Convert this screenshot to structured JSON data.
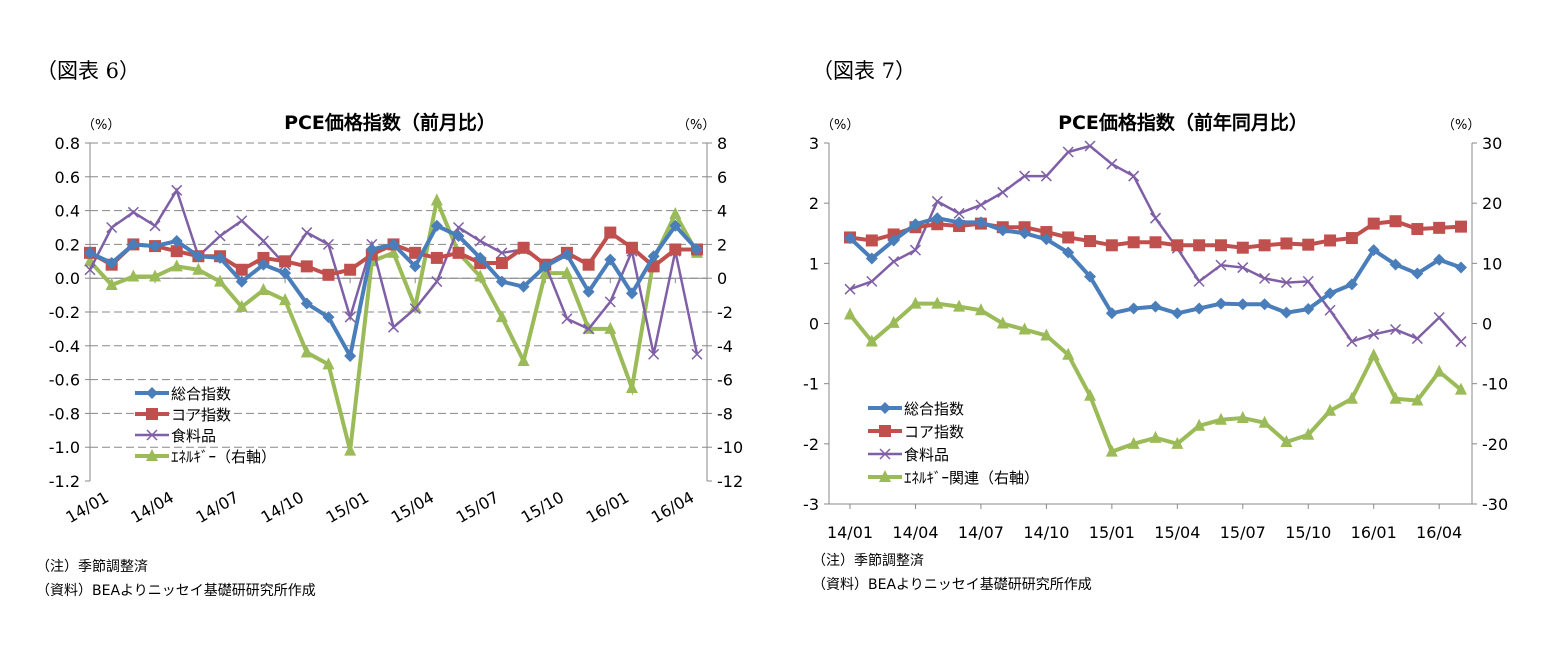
{
  "chart_data": [
    {
      "type": "line",
      "figure_label": "（図表 6）",
      "title": "PCE価格指数（前月比）",
      "left_unit": "（%）",
      "right_unit": "（%）",
      "ylim": [
        -1.2,
        0.8
      ],
      "ylim_right": [
        -12,
        8
      ],
      "yticks": [
        "0.8",
        "0.6",
        "0.4",
        "0.2",
        "0.0",
        "-0.2",
        "-0.4",
        "-0.6",
        "-0.8",
        "-1.0",
        "-1.2"
      ],
      "yticks_right": [
        "8",
        "6",
        "4",
        "2",
        "0",
        "-2",
        "-4",
        "-6",
        "-8",
        "-10",
        "-12"
      ],
      "xtick_labels": [
        "14/01",
        "14/04",
        "14/07",
        "14/10",
        "15/01",
        "15/04",
        "15/07",
        "15/10",
        "16/01",
        "16/04"
      ],
      "x": [
        "14/01",
        "14/02",
        "14/03",
        "14/04",
        "14/05",
        "14/06",
        "14/07",
        "14/08",
        "14/09",
        "14/10",
        "14/11",
        "14/12",
        "15/01",
        "15/02",
        "15/03",
        "15/04",
        "15/05",
        "15/06",
        "15/07",
        "15/08",
        "15/09",
        "15/10",
        "15/11",
        "15/12",
        "16/01",
        "16/02",
        "16/03",
        "16/04",
        "16/05"
      ],
      "grid": true,
      "legend_position": "bottom-left",
      "series": [
        {
          "name": "総合指数",
          "color": "#4a7ebb",
          "marker": "diamond",
          "axis": "left",
          "values": [
            0.15,
            0.09,
            0.2,
            0.19,
            0.22,
            0.13,
            0.12,
            -0.02,
            0.08,
            0.03,
            -0.15,
            -0.23,
            -0.46,
            0.17,
            0.2,
            0.07,
            0.31,
            0.25,
            0.12,
            -0.02,
            -0.05,
            0.07,
            0.14,
            -0.08,
            0.11,
            -0.09,
            0.13,
            0.31,
            0.17
          ]
        },
        {
          "name": "コア指数",
          "color": "#c0504d",
          "marker": "square",
          "axis": "left",
          "values": [
            0.15,
            0.08,
            0.2,
            0.19,
            0.16,
            0.13,
            0.13,
            0.05,
            0.12,
            0.1,
            0.07,
            0.02,
            0.05,
            0.14,
            0.2,
            0.15,
            0.12,
            0.15,
            0.09,
            0.09,
            0.18,
            0.08,
            0.15,
            0.08,
            0.27,
            0.18,
            0.07,
            0.17,
            0.17
          ]
        },
        {
          "name": "食料品",
          "color": "#7f5fa6",
          "marker": "x",
          "axis": "left",
          "values": [
            0.05,
            0.3,
            0.39,
            0.31,
            0.52,
            0.13,
            0.25,
            0.34,
            0.22,
            0.08,
            0.27,
            0.2,
            -0.23,
            0.2,
            -0.29,
            -0.18,
            -0.02,
            0.3,
            0.22,
            0.15,
            0.17,
            0.08,
            -0.24,
            -0.3,
            -0.14,
            0.16,
            -0.45,
            0.16,
            -0.45
          ]
        },
        {
          "name": "ｴﾈﾙｷﾞｰ（右軸）",
          "color": "#9bbb59",
          "marker": "triangle",
          "axis": "right",
          "values": [
            1.0,
            -0.4,
            0.1,
            0.1,
            0.7,
            0.5,
            -0.2,
            -1.7,
            -0.7,
            -1.3,
            -4.4,
            -5.1,
            -10.2,
            1.0,
            1.5,
            -1.7,
            4.6,
            1.5,
            0.1,
            -2.3,
            -4.9,
            0.3,
            0.3,
            -3.0,
            -3.0,
            -6.5,
            1.1,
            3.8,
            1.5
          ]
        }
      ],
      "notes": [
        "（注）季節調整済",
        "（資料）BEAよりニッセイ基礎研研究所作成"
      ]
    },
    {
      "type": "line",
      "figure_label": "（図表 7）",
      "title": "PCE価格指数（前年同月比）",
      "left_unit": "（%）",
      "right_unit": "（%）",
      "ylim": [
        -3,
        3
      ],
      "ylim_right": [
        -30,
        30
      ],
      "yticks": [
        "3",
        "2",
        "1",
        "0",
        "-1",
        "-2",
        "-3"
      ],
      "yticks_right": [
        "30",
        "20",
        "10",
        "0",
        "-10",
        "-20",
        "-30"
      ],
      "xtick_labels": [
        "14/01",
        "14/04",
        "14/07",
        "14/10",
        "15/01",
        "15/04",
        "15/07",
        "15/10",
        "16/01",
        "16/04"
      ],
      "x": [
        "14/01",
        "14/02",
        "14/03",
        "14/04",
        "14/05",
        "14/06",
        "14/07",
        "14/08",
        "14/09",
        "14/10",
        "14/11",
        "14/12",
        "15/01",
        "15/02",
        "15/03",
        "15/04",
        "15/05",
        "15/06",
        "15/07",
        "15/08",
        "15/09",
        "15/10",
        "15/11",
        "15/12",
        "16/01",
        "16/02",
        "16/03",
        "16/04",
        "16/05"
      ],
      "grid": false,
      "legend_position": "bottom-left",
      "series": [
        {
          "name": "総合指数",
          "color": "#4a7ebb",
          "marker": "diamond",
          "axis": "left",
          "values": [
            1.42,
            1.08,
            1.38,
            1.65,
            1.75,
            1.68,
            1.68,
            1.55,
            1.5,
            1.4,
            1.18,
            0.78,
            0.17,
            0.25,
            0.28,
            0.17,
            0.25,
            0.33,
            0.32,
            0.32,
            0.18,
            0.24,
            0.5,
            0.65,
            1.22,
            0.98,
            0.83,
            1.06,
            0.93
          ]
        },
        {
          "name": "コア指数",
          "color": "#c0504d",
          "marker": "square",
          "axis": "left",
          "values": [
            1.43,
            1.38,
            1.48,
            1.6,
            1.65,
            1.62,
            1.66,
            1.6,
            1.6,
            1.52,
            1.43,
            1.37,
            1.3,
            1.35,
            1.35,
            1.3,
            1.3,
            1.3,
            1.26,
            1.3,
            1.33,
            1.31,
            1.38,
            1.42,
            1.66,
            1.7,
            1.57,
            1.59,
            1.61
          ]
        },
        {
          "name": "食料品",
          "color": "#7f5fa6",
          "marker": "x",
          "axis": "left",
          "values": [
            0.57,
            0.7,
            1.03,
            1.22,
            2.03,
            1.83,
            1.97,
            2.18,
            2.45,
            2.45,
            2.85,
            2.95,
            2.65,
            2.45,
            1.75,
            1.25,
            0.7,
            0.97,
            0.93,
            0.75,
            0.68,
            0.7,
            0.22,
            -0.3,
            -0.18,
            -0.1,
            -0.25,
            0.1,
            -0.3
          ]
        },
        {
          "name": "ｴﾈﾙｷﾞｰ関連（右軸）",
          "color": "#9bbb59",
          "marker": "triangle",
          "axis": "right",
          "values": [
            1.5,
            -3,
            0.1,
            3.3,
            3.3,
            2.8,
            2.2,
            0,
            -1,
            -2,
            -5.2,
            -12,
            -21.3,
            -20,
            -19,
            -20,
            -17,
            -16,
            -15.7,
            -16.5,
            -19.7,
            -18.5,
            -14.5,
            -12.5,
            -5.3,
            -12.5,
            -12.8,
            -8,
            -11
          ]
        }
      ],
      "notes": [
        "（注）季節調整済",
        "（資料）BEAよりニッセイ基礎研研究所作成"
      ]
    }
  ]
}
